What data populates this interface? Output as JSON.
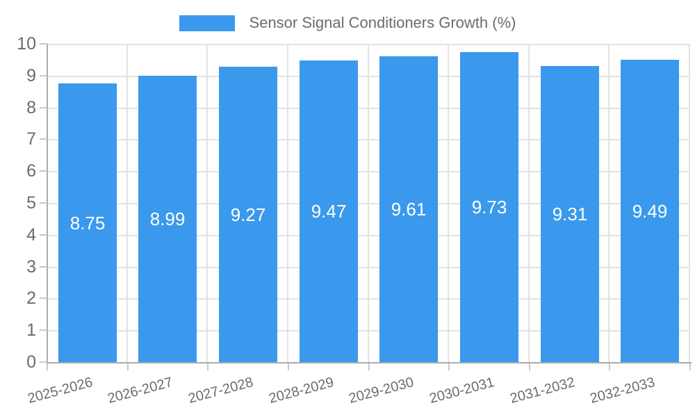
{
  "legend": {
    "label": "Sensor Signal Conditioners Growth (%)"
  },
  "chart_data": {
    "type": "bar",
    "title": "Sensor Signal Conditioners Growth (%)",
    "categories": [
      "2025-2026",
      "2026-2027",
      "2027-2028",
      "2028-2029",
      "2029-2030",
      "2030-2031",
      "2031-2032",
      "2032-2033"
    ],
    "values": [
      8.75,
      8.99,
      9.27,
      9.47,
      9.61,
      9.73,
      9.31,
      9.49
    ],
    "value_labels": [
      "8.75",
      "8.99",
      "9.27",
      "9.47",
      "9.61",
      "9.73",
      "9.31",
      "9.49"
    ],
    "xlabel": "",
    "ylabel": "",
    "ylim": [
      0,
      10
    ],
    "yticks": [
      0,
      1,
      2,
      3,
      4,
      5,
      6,
      7,
      8,
      9,
      10
    ],
    "grid": true,
    "legend_position": "top-center",
    "colors": {
      "bar": "#3A99EC",
      "value_label": "#ffffff",
      "grid_line": "#e3e3e3",
      "axis_line": "#ababab",
      "tick_mark": "#c9c9c9",
      "tick_text": "#6b6b6b",
      "background": "#ffffff"
    }
  }
}
